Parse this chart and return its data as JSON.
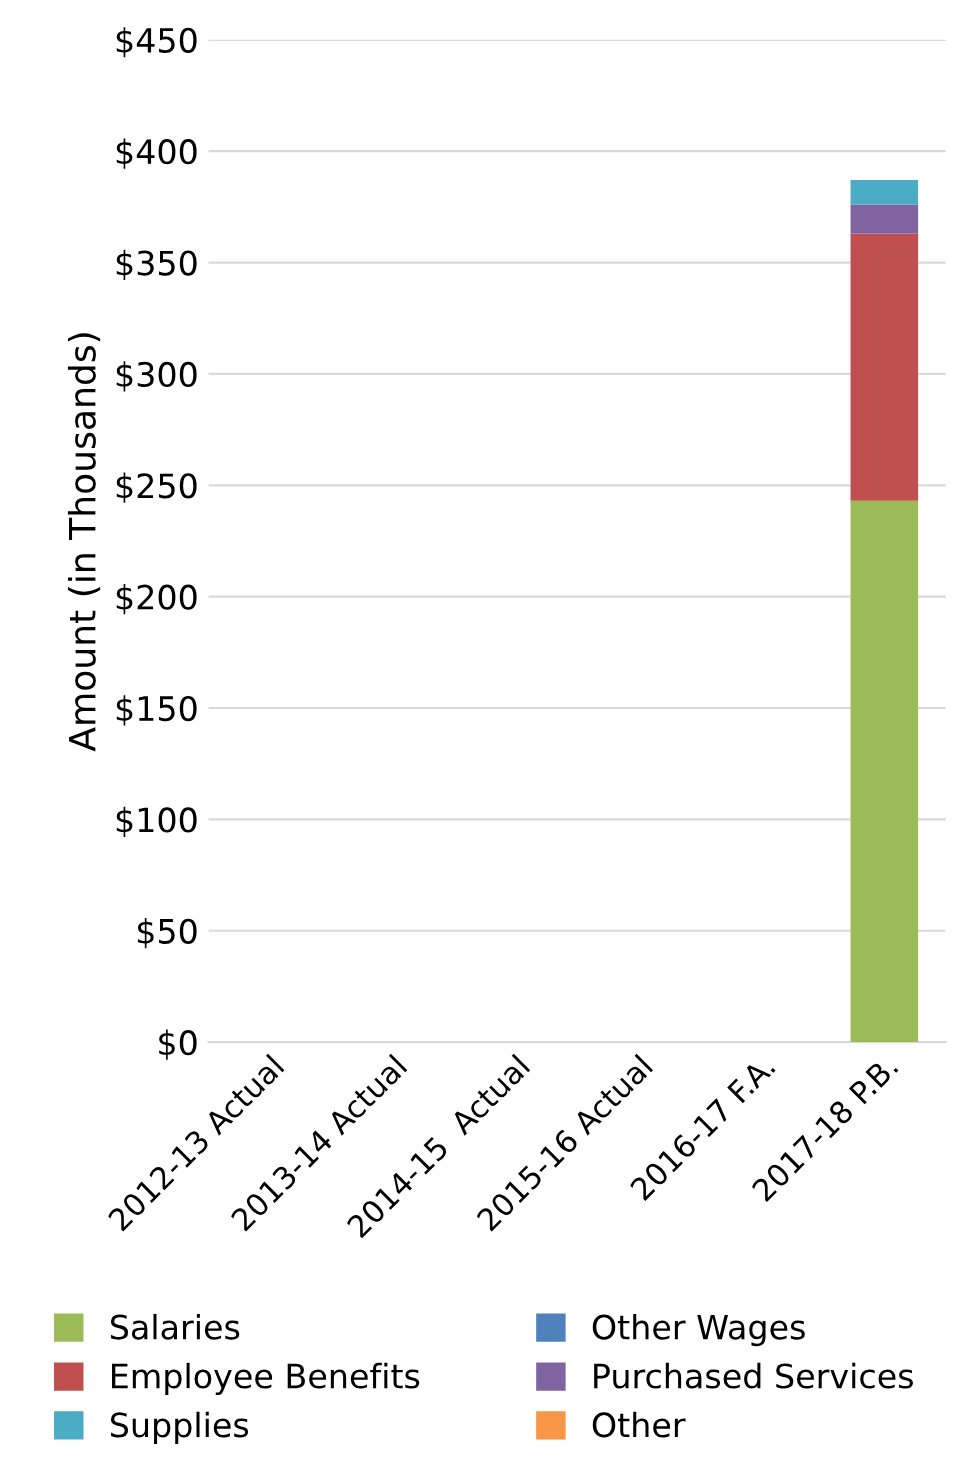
{
  "chart_data": {
    "type": "bar",
    "stacked": true,
    "ylabel": "Amount (in Thousands)",
    "categories": [
      "2012-13 Actual",
      "2013-14 Actual",
      "2014-15  Actual",
      "2015-16 Actual",
      "2016-17 F.A.",
      "2017-18 P.B."
    ],
    "series": [
      {
        "name": "Salaries",
        "color": "#9bbb59",
        "values": [
          null,
          null,
          null,
          null,
          null,
          243
        ]
      },
      {
        "name": "Other Wages",
        "color": "#4f81bd",
        "values": [
          null,
          null,
          null,
          null,
          null,
          0
        ]
      },
      {
        "name": "Employee Benefits",
        "color": "#c0504d",
        "values": [
          null,
          null,
          null,
          null,
          null,
          120
        ]
      },
      {
        "name": "Purchased Services",
        "color": "#8064a2",
        "values": [
          null,
          null,
          null,
          null,
          null,
          13
        ]
      },
      {
        "name": "Supplies",
        "color": "#4bacc6",
        "values": [
          null,
          null,
          null,
          null,
          null,
          11
        ]
      },
      {
        "name": "Other",
        "color": "#f79646",
        "values": [
          null,
          null,
          null,
          null,
          null,
          0
        ]
      }
    ],
    "ylim": [
      0,
      450
    ],
    "yticks": [
      {
        "value": 0,
        "label": "$0"
      },
      {
        "value": 50,
        "label": "$50"
      },
      {
        "value": 100,
        "label": "$100"
      },
      {
        "value": 150,
        "label": "$150"
      },
      {
        "value": 200,
        "label": "$200"
      },
      {
        "value": 250,
        "label": "$250"
      },
      {
        "value": 300,
        "label": "$300"
      },
      {
        "value": 350,
        "label": "$350"
      },
      {
        "value": 400,
        "label": "$400"
      },
      {
        "value": 450,
        "label": "$450"
      }
    ],
    "grid": "y",
    "legend": "bottom"
  }
}
